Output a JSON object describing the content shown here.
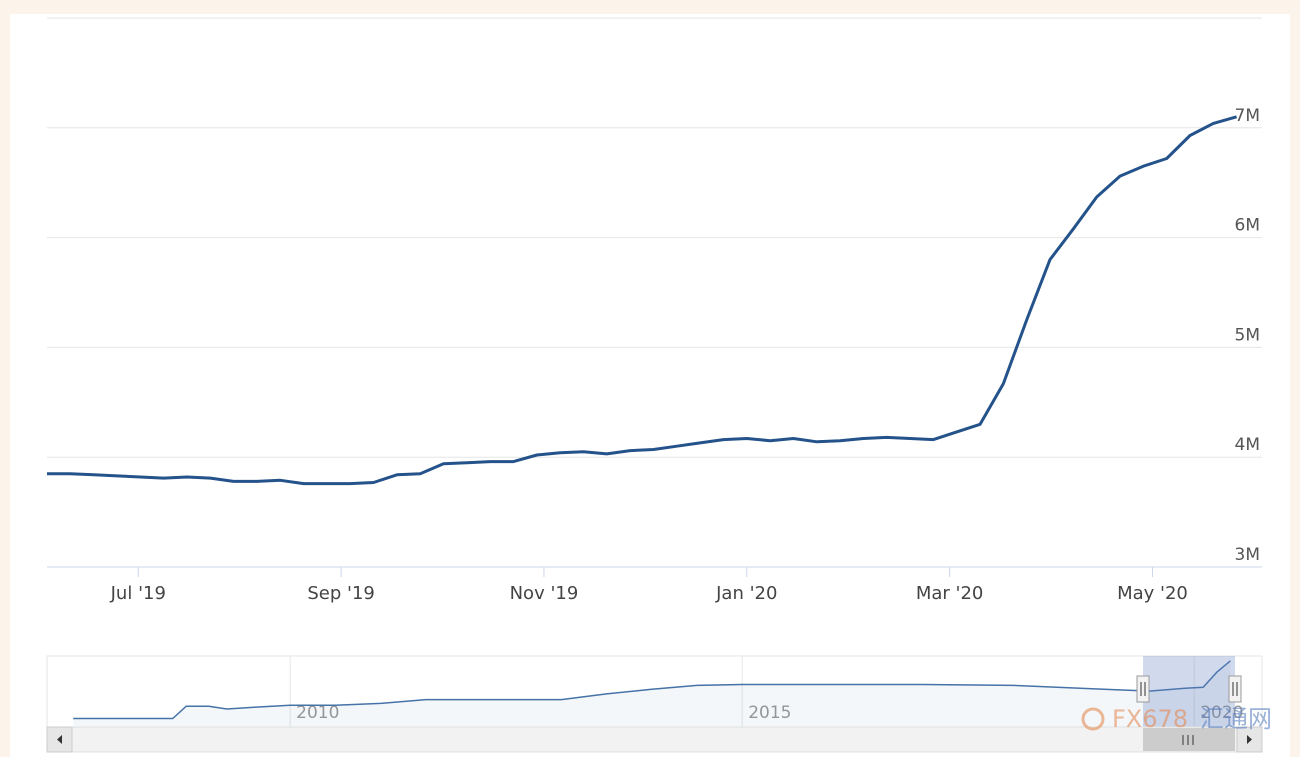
{
  "chart_data": {
    "type": "line",
    "color": "#24528a",
    "x": [
      6.1,
      6.33,
      6.56,
      6.79,
      7.02,
      7.25,
      7.48,
      7.71,
      7.94,
      8.17,
      8.4,
      8.63,
      8.86,
      9.09,
      9.32,
      9.55,
      9.78,
      10.01,
      10.24,
      10.47,
      10.7,
      10.93,
      11.16,
      11.39,
      11.62,
      11.85,
      12.08,
      12.31,
      12.54,
      12.77,
      13.0,
      13.23,
      13.46,
      13.69,
      13.92,
      14.15,
      14.38,
      14.61,
      14.84,
      15.07,
      15.3,
      15.53,
      15.76,
      15.99,
      16.22,
      16.45,
      16.68,
      16.91,
      17.14,
      17.37,
      17.6,
      17.83
    ],
    "values": [
      3850000,
      3850000,
      3840000,
      3830000,
      3820000,
      3810000,
      3820000,
      3810000,
      3780000,
      3780000,
      3790000,
      3760000,
      3760000,
      3760000,
      3770000,
      3840000,
      3850000,
      3940000,
      3950000,
      3960000,
      3960000,
      4020000,
      4040000,
      4050000,
      4030000,
      4060000,
      4070000,
      4100000,
      4130000,
      4160000,
      4170000,
      4150000,
      4170000,
      4140000,
      4150000,
      4170000,
      4180000,
      4170000,
      4160000,
      4230000,
      4300000,
      4670000,
      5250000,
      5800000,
      6080000,
      6370000,
      6560000,
      6650000,
      6720000,
      6930000,
      7040000,
      7100000
    ],
    "xlim": [
      6.1,
      18.08
    ],
    "xticks": [
      {
        "value": 7,
        "label": "Jul '19"
      },
      {
        "value": 9,
        "label": "Sep '19"
      },
      {
        "value": 11,
        "label": "Nov '19"
      },
      {
        "value": 13,
        "label": "Jan '20"
      },
      {
        "value": 15,
        "label": "Mar '20"
      },
      {
        "value": 17,
        "label": "May '20"
      }
    ],
    "ylim": [
      3000000,
      8000000
    ],
    "yticks": [
      {
        "value": 3000000,
        "label": "3M"
      },
      {
        "value": 4000000,
        "label": "4M"
      },
      {
        "value": 5000000,
        "label": "5M"
      },
      {
        "value": 6000000,
        "label": "6M"
      },
      {
        "value": 7000000,
        "label": "7M"
      }
    ],
    "grid": true,
    "navigator": {
      "x": [
        2007.6,
        2008.7,
        2008.85,
        2009.1,
        2009.3,
        2009.6,
        2010.0,
        2010.5,
        2011.0,
        2011.5,
        2012.0,
        2012.5,
        2013.0,
        2013.5,
        2014.0,
        2014.5,
        2015.0,
        2016.0,
        2017.0,
        2018.0,
        2019.0,
        2019.5,
        2019.9,
        2020.1,
        2020.25,
        2020.4
      ],
      "values": [
        900000,
        900000,
        2200000,
        2200000,
        1900000,
        2100000,
        2300000,
        2300000,
        2500000,
        2900000,
        2900000,
        2900000,
        2900000,
        3500000,
        4000000,
        4400000,
        4500000,
        4500000,
        4500000,
        4400000,
        4000000,
        3800000,
        4100000,
        4200000,
        5800000,
        7000000
      ],
      "xlim": [
        2007.31,
        2020.75
      ],
      "ylim": [
        0,
        7300000
      ],
      "xticks": [
        2010,
        2015,
        2020
      ]
    },
    "watermark": [
      "FX678",
      "汇通网"
    ]
  }
}
